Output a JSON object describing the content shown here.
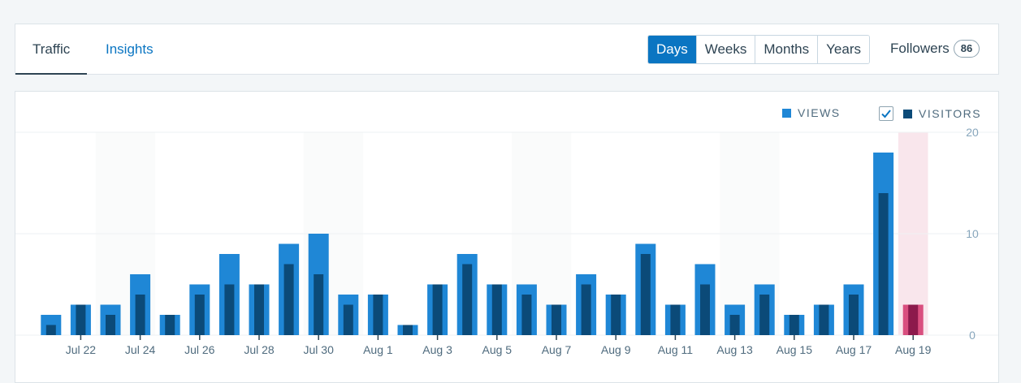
{
  "tabs": [
    {
      "label": "Traffic",
      "active": true
    },
    {
      "label": "Insights",
      "active": false
    }
  ],
  "period_buttons": [
    {
      "label": "Days",
      "selected": true
    },
    {
      "label": "Weeks",
      "selected": false
    },
    {
      "label": "Months",
      "selected": false
    },
    {
      "label": "Years",
      "selected": false
    }
  ],
  "followers": {
    "label": "Followers",
    "count": "86"
  },
  "legend": {
    "views": {
      "label": "VIEWS",
      "color": "#1f87d6"
    },
    "visitors": {
      "label": "VISITORS",
      "color": "#0b4a78",
      "checked": true
    }
  },
  "colors": {
    "accent": "#0a75c2",
    "highlight_bar": "#d94f7f",
    "highlight_inner": "#8c1a4c",
    "highlight_band": "#f9e6ec",
    "weekend_band": "#fafbfb"
  },
  "chart_data": {
    "type": "bar",
    "categories": [
      "Jul 21",
      "Jul 22",
      "Jul 23",
      "Jul 24",
      "Jul 25",
      "Jul 26",
      "Jul 27",
      "Jul 28",
      "Jul 29",
      "Jul 30",
      "Jul 31",
      "Aug 1",
      "Aug 2",
      "Aug 3",
      "Aug 4",
      "Aug 5",
      "Aug 6",
      "Aug 7",
      "Aug 8",
      "Aug 9",
      "Aug 10",
      "Aug 11",
      "Aug 12",
      "Aug 13",
      "Aug 14",
      "Aug 15",
      "Aug 16",
      "Aug 17",
      "Aug 18",
      "Aug 19"
    ],
    "tick_labels": [
      "Jul 22",
      "Jul 24",
      "Jul 26",
      "Jul 28",
      "Jul 30",
      "Aug 1",
      "Aug 3",
      "Aug 5",
      "Aug 7",
      "Aug 9",
      "Aug 11",
      "Aug 13",
      "Aug 15",
      "Aug 17",
      "Aug 19"
    ],
    "series": [
      {
        "name": "VIEWS",
        "values": [
          2,
          3,
          3,
          6,
          2,
          5,
          8,
          5,
          9,
          10,
          4,
          4,
          1,
          5,
          8,
          5,
          5,
          3,
          6,
          4,
          9,
          3,
          7,
          3,
          5,
          2,
          3,
          5,
          18,
          3
        ]
      },
      {
        "name": "VISITORS",
        "values": [
          1,
          3,
          2,
          4,
          2,
          4,
          5,
          5,
          7,
          6,
          3,
          4,
          1,
          5,
          7,
          5,
          4,
          3,
          5,
          4,
          8,
          3,
          5,
          2,
          4,
          2,
          3,
          4,
          14,
          3
        ]
      }
    ],
    "ylim": [
      0,
      20
    ],
    "yticks": [
      "20",
      "10",
      "0"
    ],
    "weekend_bands": [
      [
        "Jul 23",
        "Jul 24"
      ],
      [
        "Jul 30",
        "Jul 31"
      ],
      [
        "Aug 6",
        "Aug 7"
      ],
      [
        "Aug 13",
        "Aug 14"
      ]
    ],
    "highlighted": "Aug 19",
    "grid": true
  }
}
